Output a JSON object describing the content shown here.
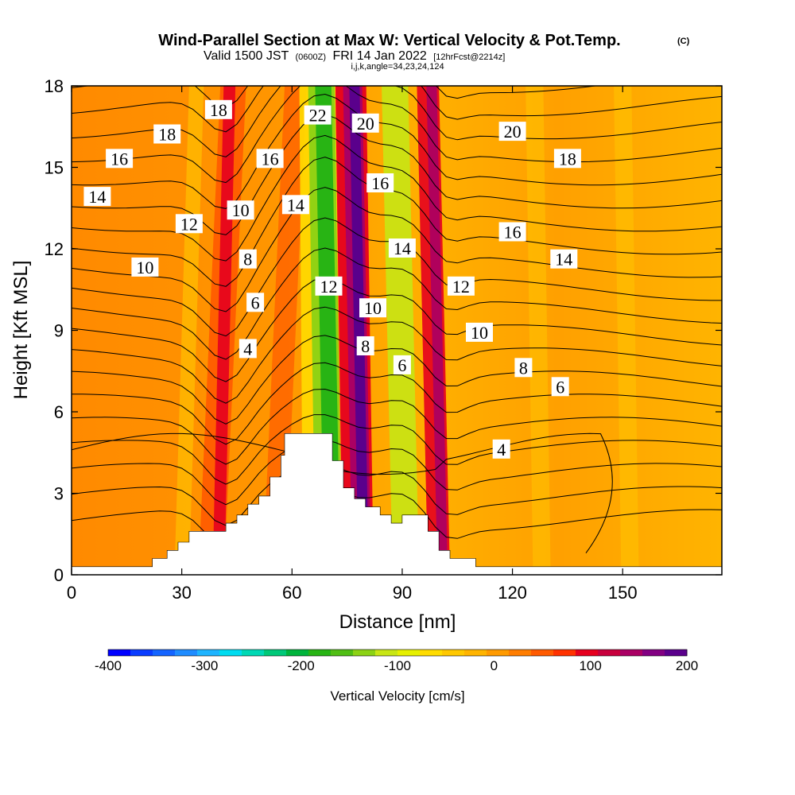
{
  "header": {
    "title_main": "Wind-Parallel Section at Max W: Vertical Velocity & Pot.Temp.",
    "title_tag": "(C)",
    "valid_prefix": "Valid 1500 JST",
    "valid_small1": "(0600Z)",
    "valid_mid": "FRI 14 Jan 2022",
    "valid_small2": "[12hrFcst@2214z]",
    "indices": "i,j,k,angle=34,23,24,124"
  },
  "colorbar": {
    "label": "Vertical Velocity [cm/s]",
    "ticks": [
      "-400",
      "-300",
      "-200",
      "-100",
      "0",
      "100",
      "200"
    ],
    "colors": [
      "#0000ff",
      "#0a3cff",
      "#1464ff",
      "#1e8cff",
      "#1eb4ff",
      "#00dcf0",
      "#00d8b4",
      "#00c878",
      "#00b43c",
      "#28b414",
      "#50be14",
      "#8cd214",
      "#c8e614",
      "#e6f000",
      "#ffdc00",
      "#ffc800",
      "#ffb400",
      "#ff9a00",
      "#ff7d00",
      "#ff5a00",
      "#ff3200",
      "#e6001e",
      "#c8003c",
      "#aa0064",
      "#820082",
      "#5a008c"
    ]
  },
  "chart_data": {
    "type": "contour",
    "title": "Wind-Parallel Section at Max W: Vertical Velocity & Pot.Temp.",
    "xlabel": "Distance [nm]",
    "ylabel": "Height [Kft MSL]",
    "xlim": [
      0,
      177
    ],
    "ylim": [
      0,
      18
    ],
    "xticks": [
      0,
      30,
      60,
      90,
      120,
      150
    ],
    "yticks": [
      0,
      3,
      6,
      9,
      12,
      15,
      18
    ],
    "shaded_field": "Vertical Velocity [cm/s]",
    "shaded_range": [
      -400,
      200
    ],
    "contour_field": "Potential temperature (C)",
    "contour_labels": [
      {
        "text": "18",
        "x": 40,
        "y": 17.1
      },
      {
        "text": "18",
        "x": 26,
        "y": 16.2
      },
      {
        "text": "16",
        "x": 13,
        "y": 15.3
      },
      {
        "text": "14",
        "x": 7,
        "y": 13.9
      },
      {
        "text": "12",
        "x": 32,
        "y": 12.9
      },
      {
        "text": "10",
        "x": 20,
        "y": 11.3
      },
      {
        "text": "22",
        "x": 67,
        "y": 16.9
      },
      {
        "text": "20",
        "x": 80,
        "y": 16.6
      },
      {
        "text": "16",
        "x": 54,
        "y": 15.3
      },
      {
        "text": "14",
        "x": 61,
        "y": 13.6
      },
      {
        "text": "10",
        "x": 46,
        "y": 13.4
      },
      {
        "text": "8",
        "x": 48,
        "y": 11.6
      },
      {
        "text": "6",
        "x": 50,
        "y": 10.0
      },
      {
        "text": "4",
        "x": 48,
        "y": 8.3
      },
      {
        "text": "16",
        "x": 84,
        "y": 14.4
      },
      {
        "text": "14",
        "x": 90,
        "y": 12.0
      },
      {
        "text": "12",
        "x": 70,
        "y": 10.6
      },
      {
        "text": "10",
        "x": 82,
        "y": 9.8
      },
      {
        "text": "8",
        "x": 80,
        "y": 8.4
      },
      {
        "text": "6",
        "x": 90,
        "y": 7.7
      },
      {
        "text": "20",
        "x": 120,
        "y": 16.3
      },
      {
        "text": "18",
        "x": 135,
        "y": 15.3
      },
      {
        "text": "16",
        "x": 120,
        "y": 12.6
      },
      {
        "text": "14",
        "x": 134,
        "y": 11.6
      },
      {
        "text": "12",
        "x": 106,
        "y": 10.6
      },
      {
        "text": "10",
        "x": 111,
        "y": 8.9
      },
      {
        "text": "8",
        "x": 123,
        "y": 7.6
      },
      {
        "text": "6",
        "x": 133,
        "y": 6.9
      },
      {
        "text": "4",
        "x": 117,
        "y": 4.6
      }
    ],
    "terrain": [
      [
        0,
        0.3
      ],
      [
        22,
        0.3
      ],
      [
        22,
        0.6
      ],
      [
        26,
        0.6
      ],
      [
        26,
        0.9
      ],
      [
        29,
        0.9
      ],
      [
        29,
        1.2
      ],
      [
        32,
        1.2
      ],
      [
        32,
        1.6
      ],
      [
        42,
        1.6
      ],
      [
        42,
        1.9
      ],
      [
        45,
        1.9
      ],
      [
        45,
        2.2
      ],
      [
        48,
        2.2
      ],
      [
        48,
        2.6
      ],
      [
        51,
        2.6
      ],
      [
        51,
        2.9
      ],
      [
        54,
        2.9
      ],
      [
        54,
        3.6
      ],
      [
        57,
        3.6
      ],
      [
        57,
        4.4
      ],
      [
        58,
        4.4
      ],
      [
        58,
        5.2
      ],
      [
        71,
        5.2
      ],
      [
        71,
        4.2
      ],
      [
        74,
        4.2
      ],
      [
        74,
        3.2
      ],
      [
        77,
        3.2
      ],
      [
        77,
        2.8
      ],
      [
        80,
        2.8
      ],
      [
        80,
        2.5
      ],
      [
        84,
        2.5
      ],
      [
        84,
        2.2
      ],
      [
        87,
        2.2
      ],
      [
        87,
        1.9
      ],
      [
        90,
        1.9
      ],
      [
        90,
        2.2
      ],
      [
        97,
        2.2
      ],
      [
        97,
        1.6
      ],
      [
        100,
        1.6
      ],
      [
        100,
        0.9
      ],
      [
        103,
        0.9
      ],
      [
        103,
        0.6
      ],
      [
        110,
        0.6
      ],
      [
        110,
        0.3
      ],
      [
        177,
        0.3
      ]
    ]
  }
}
